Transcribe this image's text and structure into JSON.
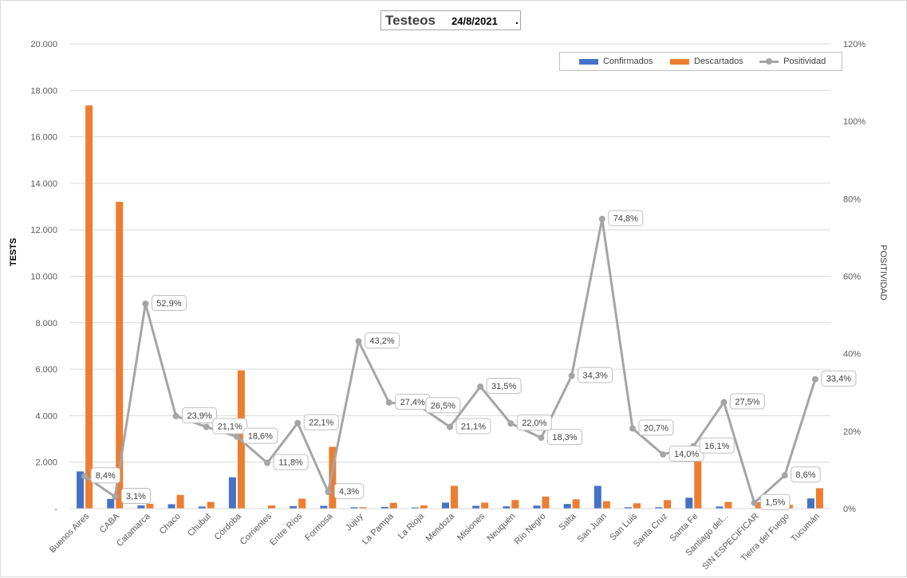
{
  "chart_data": {
    "type": "bar",
    "title": "Testeos",
    "subtitle": "24/8/2021",
    "subtitle_suffix": ".",
    "ylabel": "TESTS",
    "y2label": "POSITIVIDAD",
    "ylim": [
      0,
      20000
    ],
    "y2lim": [
      0,
      1.2
    ],
    "yticks": [
      "-",
      "2.000",
      "4.000",
      "6.000",
      "8.000",
      "10.000",
      "12.000",
      "14.000",
      "16.000",
      "18.000",
      "20.000"
    ],
    "y2ticks": [
      "0%",
      "20%",
      "40%",
      "60%",
      "80%",
      "100%",
      "120%"
    ],
    "grid": true,
    "legend_position": "top-right",
    "categories": [
      "Buenos Aires",
      "CABA",
      "Catamarca",
      "Chaco",
      "Chubut",
      "Córdoba",
      "Corrientes",
      "Entre Ríos",
      "Formosa",
      "Jujuy",
      "La Pampa",
      "La Rioja",
      "Mendoza",
      "Misiones",
      "Neuquén",
      "Río Negro",
      "Salta",
      "San Juan",
      "San Luis",
      "Santa Cruz",
      "Santa Fe",
      "Santiago del...",
      "SIN ESPECIFICAR",
      "Tierra del Fuego",
      "Tucumán"
    ],
    "series": [
      {
        "name": "Confirmados",
        "type": "bar",
        "axis": "left",
        "color": "#4472c4",
        "values": [
          1600,
          420,
          140,
          190,
          90,
          1350,
          20,
          110,
          120,
          60,
          75,
          50,
          260,
          120,
          100,
          130,
          200,
          980,
          60,
          60,
          470,
          90,
          5,
          20,
          440
        ]
      },
      {
        "name": "Descartados",
        "type": "bar",
        "axis": "left",
        "color": "#ed7d31",
        "values": [
          17350,
          13200,
          210,
          590,
          290,
          5950,
          140,
          430,
          2660,
          60,
          250,
          140,
          980,
          260,
          370,
          520,
          400,
          320,
          230,
          370,
          2450,
          290,
          280,
          170,
          880
        ]
      },
      {
        "name": "Positividad",
        "type": "line",
        "axis": "right",
        "color": "#a5a5a5",
        "values": [
          0.084,
          0.031,
          0.529,
          0.239,
          0.211,
          0.186,
          0.118,
          0.221,
          0.043,
          0.432,
          0.274,
          0.265,
          0.211,
          0.315,
          0.22,
          0.183,
          0.343,
          0.748,
          0.207,
          0.14,
          0.161,
          0.275,
          0.015,
          0.086,
          0.334
        ],
        "labels": [
          "8,4%",
          "3,1%",
          "52,9%",
          "23,9%",
          "21,1%",
          "18,6%",
          "11,8%",
          "22,1%",
          "4,3%",
          "43,2%",
          "27,4%",
          "26,5%",
          "21,1%",
          "31,5%",
          "22,0%",
          "18,3%",
          "34,3%",
          "74,8%",
          "20,7%",
          "14,0%",
          "16,1%",
          "27,5%",
          "1,5%",
          "8,6%",
          "33,4%"
        ]
      }
    ]
  }
}
